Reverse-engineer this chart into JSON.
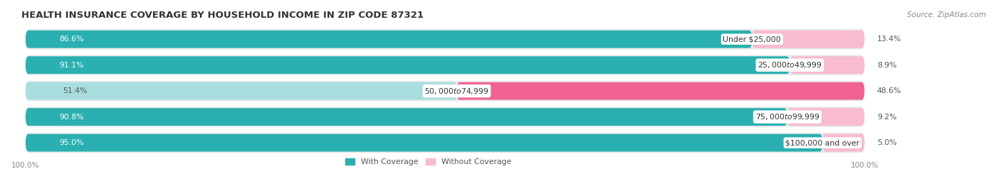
{
  "title": "HEALTH INSURANCE COVERAGE BY HOUSEHOLD INCOME IN ZIP CODE 87321",
  "source": "Source: ZipAtlas.com",
  "categories": [
    "Under $25,000",
    "$25,000 to $49,999",
    "$50,000 to $74,999",
    "$75,000 to $99,999",
    "$100,000 and over"
  ],
  "with_coverage": [
    86.6,
    91.1,
    51.4,
    90.8,
    95.0
  ],
  "without_coverage": [
    13.4,
    8.9,
    48.6,
    9.2,
    5.0
  ],
  "coverage_color_dark": "#2ab0b0",
  "coverage_color_light": "#a8dede",
  "no_coverage_color_dark": "#f06292",
  "no_coverage_color_light": "#f8bbd0",
  "row_bg": "#e8e8e8",
  "row_outer_bg": "#f0f0f0",
  "legend_coverage": "With Coverage",
  "legend_no_coverage": "Without Coverage",
  "bar_height": 0.68,
  "figsize": [
    14.06,
    2.69
  ],
  "dpi": 100,
  "title_fontsize": 9.5,
  "label_fontsize": 7.8,
  "pct_fontsize": 7.8,
  "axis_label_fontsize": 7.5,
  "source_fontsize": 7.5
}
